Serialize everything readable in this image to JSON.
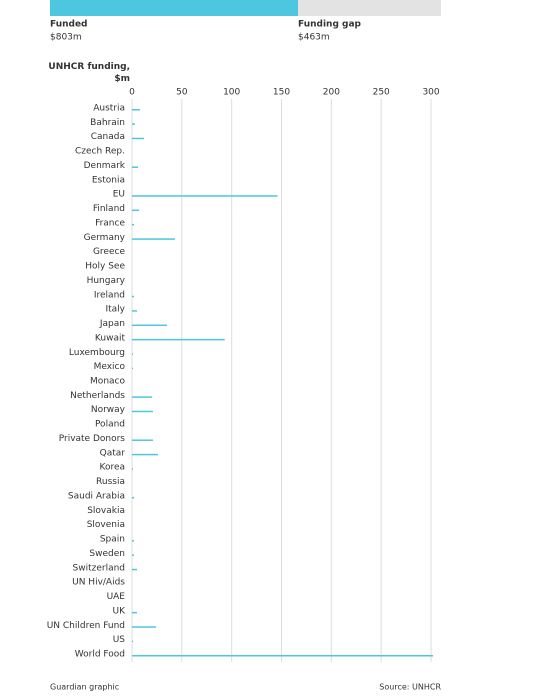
{
  "chart_data": [
    {
      "type": "stacked-bar",
      "series": [
        {
          "name": "Funded",
          "color": "#4dc6e0",
          "label_color": "#4dc6e0",
          "values": [
            803
          ],
          "value_labels": [
            "$803m"
          ]
        },
        {
          "name": "Funding gap",
          "color": "#e3e3e3",
          "label_color": "#cfcfcf",
          "values": [
            463
          ],
          "value_labels": [
            "$463m"
          ]
        }
      ]
    },
    {
      "type": "bar",
      "orientation": "horizontal",
      "title": "UNHCR funding, $m",
      "categories": [
        "Austria",
        "Bahrain",
        "Canada",
        "Czech Rep.",
        "Denmark",
        "Estonia",
        "EU",
        "Finland",
        "France",
        "Germany",
        "Greece",
        "Holy See",
        "Hungary",
        "Ireland",
        "Italy",
        "Japan",
        "Kuwait",
        "Luxembourg",
        "Mexico",
        "Monaco",
        "Netherlands",
        "Norway",
        "Poland",
        "Private Donors",
        "Qatar",
        "Korea",
        "Russia",
        "Saudi Arabia",
        "Slovakia",
        "Slovenia",
        "Spain",
        "Sweden",
        "Switzerland",
        "UN Hiv/Aids",
        "UAE",
        "UK",
        "UN Children Fund",
        "US",
        "World Food"
      ],
      "values": [
        8,
        3,
        12,
        0,
        6,
        0,
        146,
        7,
        2,
        43,
        0,
        0,
        0,
        2,
        5,
        35,
        93,
        1,
        1,
        0,
        20,
        21,
        0,
        21,
        26,
        1,
        0,
        2,
        0,
        0,
        2,
        2,
        5,
        0,
        0,
        5,
        24,
        1,
        302
      ],
      "color": "#4dc6e0",
      "xlim": [
        0,
        310
      ],
      "xticks": [
        0,
        50,
        100,
        150,
        200,
        250,
        300
      ],
      "grid": true
    }
  ],
  "footer": {
    "credit": "Guardian graphic",
    "source": "Source: UNHCR"
  }
}
